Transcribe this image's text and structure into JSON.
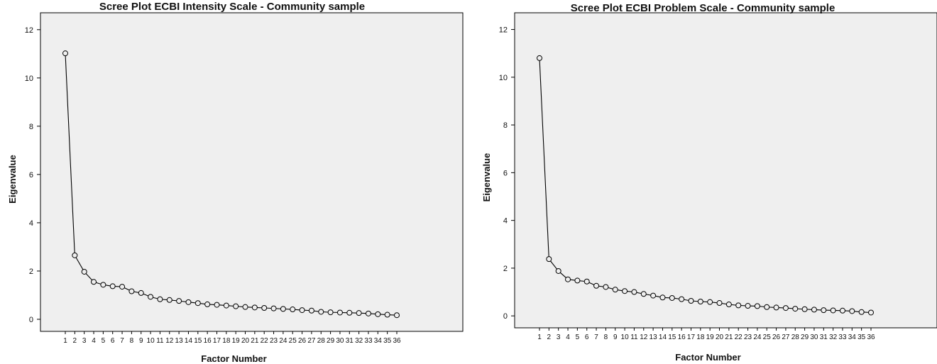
{
  "chart_data": [
    {
      "type": "line",
      "title": "Scree Plot ECBI Intensity Scale - Community sample",
      "xlabel": "Factor Number",
      "ylabel": "Eigenvalue",
      "x": [
        1,
        2,
        3,
        4,
        5,
        6,
        7,
        8,
        9,
        10,
        11,
        12,
        13,
        14,
        15,
        16,
        17,
        18,
        19,
        20,
        21,
        22,
        23,
        24,
        25,
        26,
        27,
        28,
        29,
        30,
        31,
        32,
        33,
        34,
        35,
        36
      ],
      "values": [
        11.02,
        2.65,
        1.97,
        1.55,
        1.43,
        1.37,
        1.35,
        1.16,
        1.09,
        0.93,
        0.83,
        0.8,
        0.76,
        0.71,
        0.67,
        0.62,
        0.6,
        0.57,
        0.54,
        0.51,
        0.49,
        0.47,
        0.45,
        0.43,
        0.41,
        0.38,
        0.36,
        0.31,
        0.29,
        0.28,
        0.27,
        0.26,
        0.24,
        0.21,
        0.19,
        0.17
      ],
      "ylim": [
        -0.5,
        12.7
      ],
      "yticks": [
        0,
        2,
        4,
        6,
        8,
        10,
        12
      ],
      "plot_bg": "#efefef",
      "line_color": "#000000",
      "marker": "open-circle"
    },
    {
      "type": "line",
      "title": "Scree Plot ECBI Problem Scale - Community sample",
      "xlabel": "Factor Number",
      "ylabel": "Eigenvalue",
      "x": [
        1,
        2,
        3,
        4,
        5,
        6,
        7,
        8,
        9,
        10,
        11,
        12,
        13,
        14,
        15,
        16,
        17,
        18,
        19,
        20,
        21,
        22,
        23,
        24,
        25,
        26,
        27,
        28,
        29,
        30,
        31,
        32,
        33,
        34,
        35,
        36
      ],
      "values": [
        10.8,
        2.38,
        1.88,
        1.53,
        1.48,
        1.44,
        1.26,
        1.21,
        1.1,
        1.04,
        1.0,
        0.92,
        0.85,
        0.77,
        0.75,
        0.7,
        0.63,
        0.6,
        0.58,
        0.54,
        0.48,
        0.44,
        0.42,
        0.41,
        0.37,
        0.35,
        0.33,
        0.3,
        0.28,
        0.26,
        0.24,
        0.23,
        0.22,
        0.2,
        0.16,
        0.14
      ],
      "ylim": [
        -0.5,
        12.7
      ],
      "yticks": [
        0,
        2,
        4,
        6,
        8,
        10,
        12
      ],
      "plot_bg": "#efefef",
      "line_color": "#000000",
      "marker": "open-circle"
    }
  ]
}
